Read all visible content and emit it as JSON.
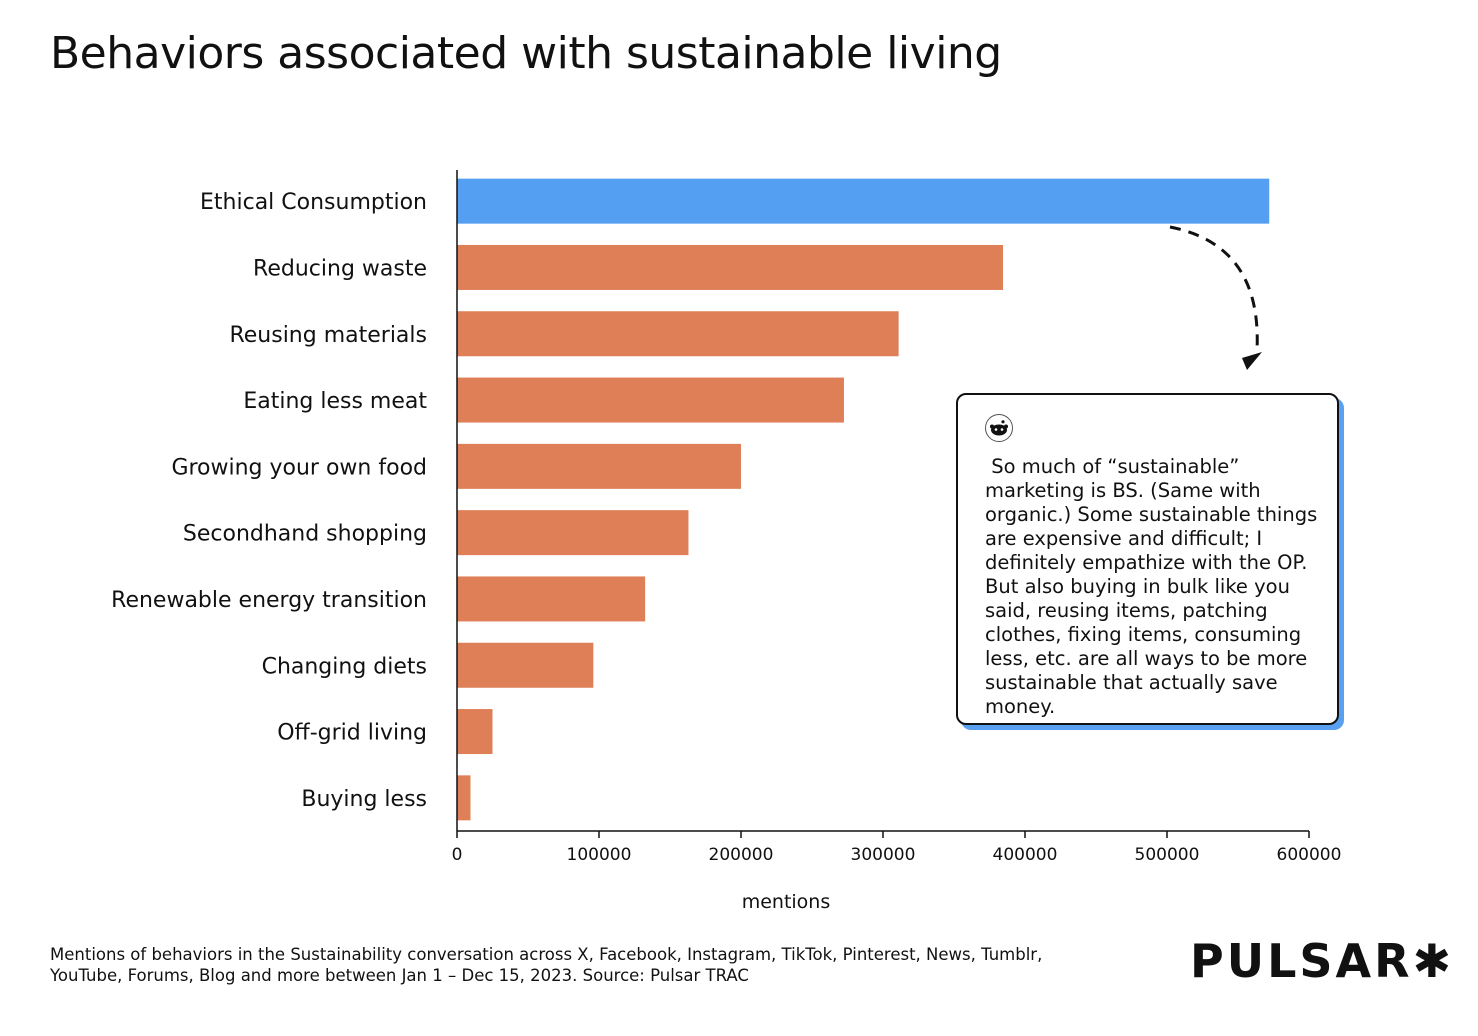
{
  "chart_data": {
    "type": "bar",
    "orientation": "horizontal",
    "title": "Behaviors associated with sustainable living",
    "xlabel": "mentions",
    "ylabel": "",
    "xlim": [
      0,
      600000
    ],
    "xticks": [
      "0",
      "100000",
      "200000",
      "300000",
      "400000",
      "500000",
      "600000"
    ],
    "grid": false,
    "categories": [
      "Ethical Consumption",
      "Reducing waste",
      "Reusing materials",
      "Eating less meat",
      "Growing your own food",
      "Secondhand shopping",
      "Renewable energy transition",
      "Changing diets",
      "Off-grid living",
      "Buying less"
    ],
    "values": [
      572000,
      384500,
      311000,
      272500,
      200000,
      163000,
      132500,
      96000,
      25000,
      9500
    ],
    "colors": {
      "highlight": "#559ff2",
      "default": "#de7f57"
    },
    "highlight_index": 0
  },
  "callout": {
    "source_icon": "reddit-icon",
    "quote": " So much of “sustainable” marketing is BS. (Same with organic.) Some sustainable things are expensive and difficult; I definitely empathize with the OP. But also buying in bulk like you said, reusing items, patching clothes, fixing items, consuming less, etc. are all ways to be more sustainable that actually save money.",
    "accent": "#559ff2"
  },
  "footnote": "Mentions of behaviors in the Sustainability conversation across X, Facebook, Instagram, TikTok, Pinterest, News, Tumblr, YouTube, Forums, Blog and more between Jan 1 – Dec 15, 2023. Source: Pulsar TRAC",
  "logo": "PULSAR✱"
}
